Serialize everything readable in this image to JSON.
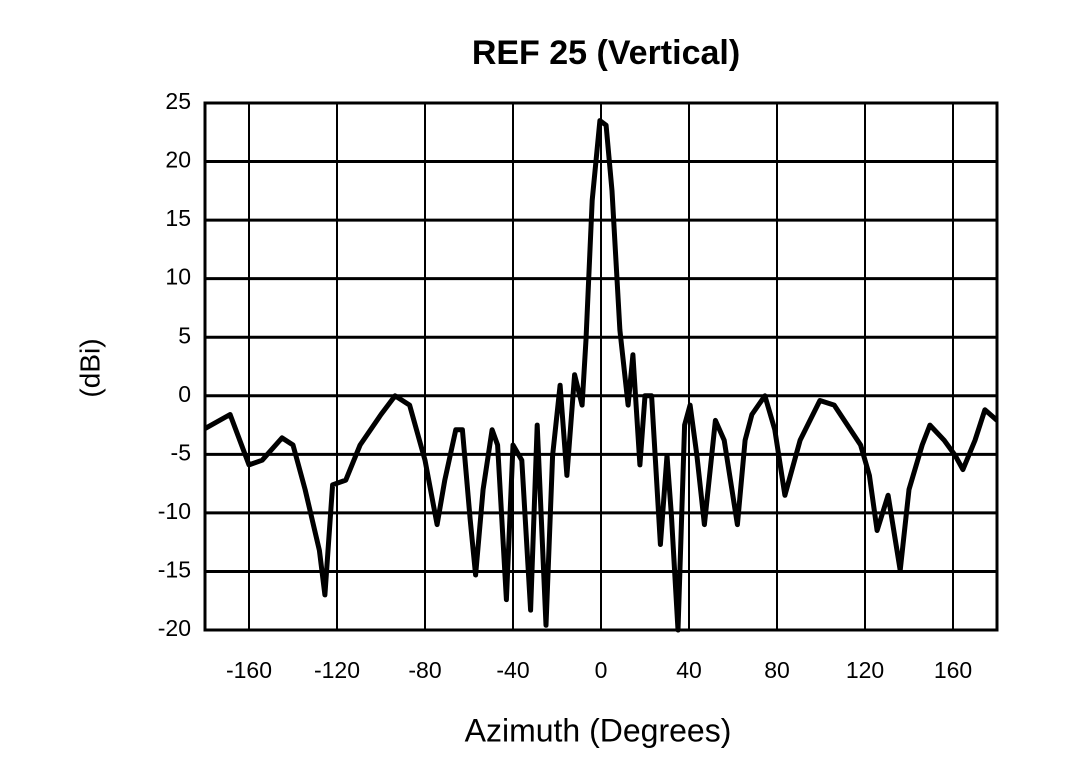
{
  "chart_data": {
    "type": "line",
    "title": "REF 25 (Vertical)",
    "x_label": "Azimuth (Degrees)",
    "y_label": "(dBi)",
    "x": [
      -180,
      -168.6,
      -160,
      -154,
      -145,
      -140,
      -134.5,
      -128,
      -125.5,
      -122,
      -116,
      -109.5,
      -100,
      -93.6,
      -87,
      -80,
      -74.5,
      -71,
      -66,
      -63,
      -59.5,
      -57,
      -53.6,
      -49.5,
      -47,
      -43,
      -40,
      -36,
      -32,
      -29,
      -25,
      -22,
      -18.6,
      -15.5,
      -12,
      -8.6,
      -6.8,
      -4,
      -0.5,
      2.3,
      5,
      8.6,
      12.3,
      14.5,
      17.7,
      20,
      23,
      27,
      30,
      32,
      35,
      38,
      40.5,
      43.6,
      47,
      52,
      56,
      62,
      65.5,
      68.6,
      74.5,
      79,
      83.6,
      90.5,
      99.5,
      106,
      118,
      122,
      125.5,
      130.5,
      136,
      140,
      146,
      149.5,
      156,
      161,
      164.5,
      170,
      174.5,
      180
    ],
    "values": [
      -2.8,
      -1.6,
      -5.9,
      -5.5,
      -3.6,
      -4.2,
      -8,
      -13.2,
      -17,
      -7.6,
      -7.2,
      -4.2,
      -1.6,
      0,
      -0.8,
      -5.5,
      -11,
      -7.2,
      -2.9,
      -2.9,
      -10.5,
      -15.3,
      -8,
      -2.9,
      -4.2,
      -17.4,
      -4.2,
      -5.5,
      -18.3,
      -2.5,
      -19.6,
      -5.1,
      0.9,
      -6.8,
      1.8,
      -0.8,
      4.8,
      16.7,
      23.5,
      23.1,
      17.5,
      5.6,
      -0.8,
      3.5,
      -5.9,
      0,
      0,
      -12.7,
      -5.1,
      -10.2,
      -20,
      -2.5,
      -0.8,
      -5.1,
      -11,
      -2.1,
      -3.8,
      -11,
      -3.8,
      -1.6,
      0,
      -2.9,
      -8.5,
      -3.8,
      -0.4,
      -0.8,
      -4.2,
      -6.8,
      -11.5,
      -8.5,
      -14.9,
      -8,
      -4.2,
      -2.5,
      -3.8,
      -5.1,
      -6.3,
      -3.8,
      -1.2,
      -2.1
    ],
    "color": "#000000",
    "xlim": [
      -180,
      180
    ],
    "xticks": [
      -160,
      -120,
      -80,
      -40,
      0,
      40,
      80,
      120,
      160
    ],
    "ylim": [
      -20,
      25
    ],
    "yticks": [
      -20,
      -15,
      -10,
      -5,
      0,
      5,
      10,
      15,
      20,
      25
    ],
    "grid": true
  }
}
